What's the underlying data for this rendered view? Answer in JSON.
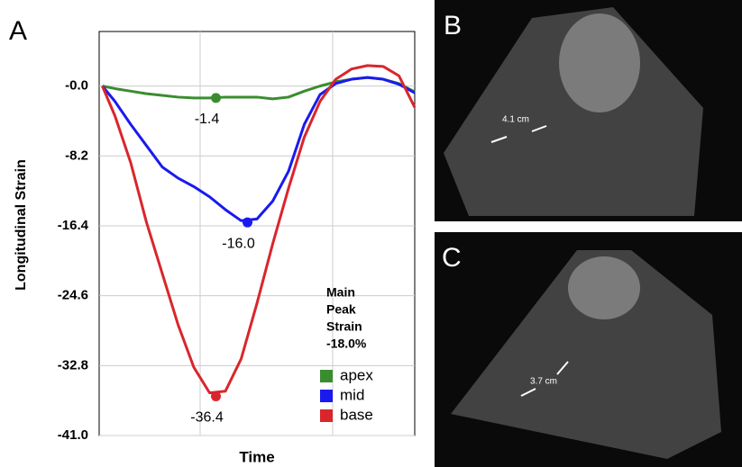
{
  "chart_data": {
    "type": "line",
    "panel_label": "A",
    "ylabel": "Longitudinal Strain",
    "xlabel": "Time",
    "x": [
      1,
      5,
      10,
      15,
      20,
      25,
      30,
      35,
      40,
      45,
      50,
      55,
      60,
      65,
      70,
      75,
      80,
      85,
      90,
      95,
      100
    ],
    "xlim": [
      0,
      100
    ],
    "xticks_unlabeled": [
      32,
      74
    ],
    "ylim": [
      -41,
      6.4
    ],
    "yticks": [
      {
        "value": 0,
        "label": "-0.0"
      },
      -8.2,
      -16.4,
      -24.6,
      -32.8,
      {
        "value": -41,
        "label": "-41.0"
      }
    ],
    "grid": true,
    "legend": "lower right",
    "series": [
      {
        "name": "apex",
        "color": "#3a8d2f",
        "values": [
          0,
          -0.3,
          -0.6,
          -0.9,
          -1.1,
          -1.3,
          -1.4,
          -1.4,
          -1.3,
          -1.3,
          -1.3,
          -1.5,
          -1.3,
          -0.6,
          0,
          0.5,
          0.8,
          1,
          0.8,
          0.3,
          -0.7
        ],
        "peak_x": 37,
        "peak": -1.4
      },
      {
        "name": "mid",
        "color": "#1a1af0",
        "values": [
          0,
          -1.8,
          -4.5,
          -7,
          -9.5,
          -10.8,
          -11.8,
          -13,
          -14.5,
          -15.8,
          -15.6,
          -13.5,
          -10,
          -4.5,
          -1,
          0.3,
          0.8,
          1,
          0.8,
          0.2,
          -0.8
        ],
        "peak_x": 47,
        "peak": -16,
        "peak_label": "-16.0"
      },
      {
        "name": "base",
        "color": "#d9262c",
        "values": [
          0,
          -3.5,
          -9,
          -16,
          -22,
          -28,
          -33,
          -36,
          -35.8,
          -32,
          -25.5,
          -18.5,
          -12,
          -6,
          -1.8,
          0.8,
          2,
          2.4,
          2.3,
          1.2,
          -2.5
        ],
        "peak_x": 37,
        "peak": -36.4
      }
    ],
    "annotation": [
      "Main",
      "Peak",
      "Strain",
      "-18.0%"
    ]
  },
  "panels": [
    {
      "label": "B",
      "measurement": "4.1 cm"
    },
    {
      "label": "C",
      "measurement": "3.7 cm"
    }
  ]
}
